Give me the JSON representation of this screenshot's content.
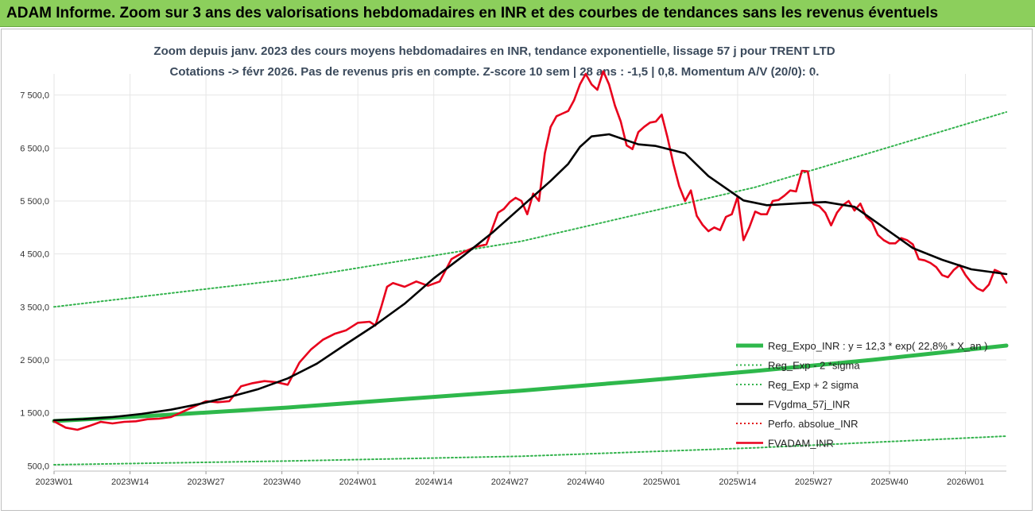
{
  "header": {
    "banner": "ADAM Informe. Zoom sur 3 ans des valorisations hebdomadaires en INR et des courbes de tendances sans les revenus éventuels"
  },
  "colors": {
    "banner_bg": "#8ccf5c",
    "reg_expo": "#2eb84b",
    "reg_sigma": "#33b34d",
    "fv_gdma": "#000000",
    "perfo": "#e31a1c",
    "fv_adam": "#e8001c"
  },
  "chart_data": {
    "type": "line",
    "title": [
      "Zoom depuis janv. 2023 des cours moyens hebdomadaires en INR, tendance exponentielle, lissage 57 j pour TRENT LTD",
      "Cotations -> févr 2026. Pas de revenus pris en compte. Z-score 10 sem | 28 ans : -1,5 | 0,8. Momentum A/V (20/0): 0."
    ],
    "x_range": [
      0,
      163
    ],
    "ylim": [
      400,
      7900
    ],
    "y_ticks": [
      500,
      1500,
      2500,
      3500,
      4500,
      5500,
      6500,
      7500
    ],
    "y_tick_labels": [
      "500,0",
      "1 500,0",
      "2 500,0",
      "3 500,0",
      "4 500,0",
      "5 500,0",
      "6 500,0",
      "7 500,0"
    ],
    "x_ticks": [
      0,
      13,
      26,
      39,
      52,
      65,
      78,
      91,
      104,
      117,
      130,
      143,
      156
    ],
    "x_tick_labels": [
      "2023W01",
      "2023W14",
      "2023W27",
      "2023W40",
      "2024W01",
      "2024W14",
      "2024W27",
      "2024W40",
      "2025W01",
      "2025W14",
      "2025W27",
      "2025W40",
      "2026W01"
    ],
    "legend_position": "bottom-right",
    "series": [
      {
        "name": "Reg_Expo_INR : y = 12,3 * exp( 22,8% *  X_an )",
        "style": "solid-thick",
        "color": "#2eb84b",
        "x": [
          0,
          20,
          40,
          60,
          80,
          100,
          120,
          140,
          163
        ],
        "values": [
          1345,
          1465,
          1600,
          1760,
          1920,
          2100,
          2290,
          2500,
          2770
        ]
      },
      {
        "name": "Reg_Exp - 2 *sigma",
        "style": "dotted",
        "color": "#33b34d",
        "x": [
          0,
          40,
          80,
          120,
          163
        ],
        "values": [
          520,
          590,
          680,
          840,
          1060
        ]
      },
      {
        "name": "Reg_Exp + 2 sigma",
        "style": "dotted",
        "color": "#33b34d",
        "x": [
          0,
          40,
          80,
          120,
          163
        ],
        "values": [
          3500,
          4020,
          4740,
          5760,
          7180
        ]
      },
      {
        "name": "FVgdma_57j_INR",
        "style": "solid",
        "color": "#000000",
        "x": [
          0,
          5,
          10,
          15,
          20,
          25,
          30,
          35,
          40,
          45,
          50,
          55,
          60,
          65,
          70,
          75,
          80,
          85,
          88,
          90,
          92,
          95,
          100,
          103,
          108,
          112,
          118,
          122,
          128,
          132,
          137,
          142,
          147,
          152,
          157,
          163
        ],
        "values": [
          1360,
          1380,
          1420,
          1480,
          1560,
          1670,
          1800,
          1950,
          2150,
          2430,
          2800,
          3160,
          3560,
          4040,
          4460,
          4900,
          5390,
          5880,
          6200,
          6520,
          6720,
          6760,
          6570,
          6540,
          6400,
          5970,
          5510,
          5420,
          5460,
          5480,
          5390,
          5000,
          4610,
          4390,
          4210,
          4120
        ]
      },
      {
        "name": "Perfo. absolue_INR",
        "style": "dotted",
        "color": "#e31a1c",
        "x": [],
        "values": []
      },
      {
        "name": "FVADAM_INR",
        "style": "solid",
        "color": "#e8001c",
        "x": [
          0,
          2,
          4,
          6,
          8,
          10,
          12,
          14,
          16,
          18,
          20,
          22,
          24,
          26,
          28,
          30,
          32,
          34,
          36,
          38,
          40,
          42,
          44,
          46,
          48,
          50,
          52,
          54,
          55,
          56,
          57,
          58,
          60,
          62,
          64,
          66,
          68,
          70,
          72,
          74,
          76,
          77,
          78,
          79,
          80,
          81,
          82,
          83,
          84,
          85,
          86,
          87,
          88,
          89,
          90,
          91,
          92,
          93,
          94,
          95,
          96,
          97,
          98,
          99,
          100,
          101,
          102,
          103,
          104,
          105,
          106,
          107,
          108,
          109,
          110,
          111,
          112,
          113,
          114,
          115,
          116,
          117,
          118,
          119,
          120,
          121,
          122,
          123,
          124,
          125,
          126,
          127,
          128,
          129,
          130,
          131,
          132,
          133,
          134,
          135,
          136,
          137,
          138,
          139,
          140,
          141,
          142,
          143,
          144,
          145,
          146,
          147,
          148,
          149,
          150,
          151,
          152,
          153,
          154,
          155,
          156,
          157,
          158,
          159,
          160,
          161,
          162,
          163
        ],
        "values": [
          1340,
          1220,
          1180,
          1250,
          1330,
          1300,
          1330,
          1340,
          1380,
          1390,
          1420,
          1520,
          1620,
          1720,
          1700,
          1720,
          2000,
          2060,
          2100,
          2080,
          2030,
          2450,
          2700,
          2880,
          2990,
          3060,
          3200,
          3220,
          3150,
          3500,
          3880,
          3950,
          3880,
          3980,
          3900,
          3980,
          4400,
          4530,
          4630,
          4680,
          5280,
          5350,
          5480,
          5560,
          5500,
          5250,
          5640,
          5500,
          6400,
          6900,
          7100,
          7150,
          7200,
          7400,
          7700,
          7900,
          7700,
          7600,
          7950,
          7700,
          7300,
          7000,
          6550,
          6480,
          6800,
          6900,
          6980,
          7000,
          7130,
          6700,
          6200,
          5780,
          5500,
          5700,
          5220,
          5050,
          4930,
          5000,
          4950,
          5200,
          5250,
          5580,
          4760,
          5000,
          5300,
          5250,
          5250,
          5500,
          5520,
          5600,
          5700,
          5680,
          6070,
          6060,
          5440,
          5400,
          5280,
          5040,
          5280,
          5420,
          5500,
          5320,
          5450,
          5200,
          5100,
          4860,
          4760,
          4700,
          4700,
          4800,
          4760,
          4680,
          4400,
          4380,
          4330,
          4250,
          4100,
          4060,
          4200,
          4290,
          4100,
          3960,
          3850,
          3800,
          3920,
          4200,
          4150,
          3960
        ]
      }
    ]
  }
}
